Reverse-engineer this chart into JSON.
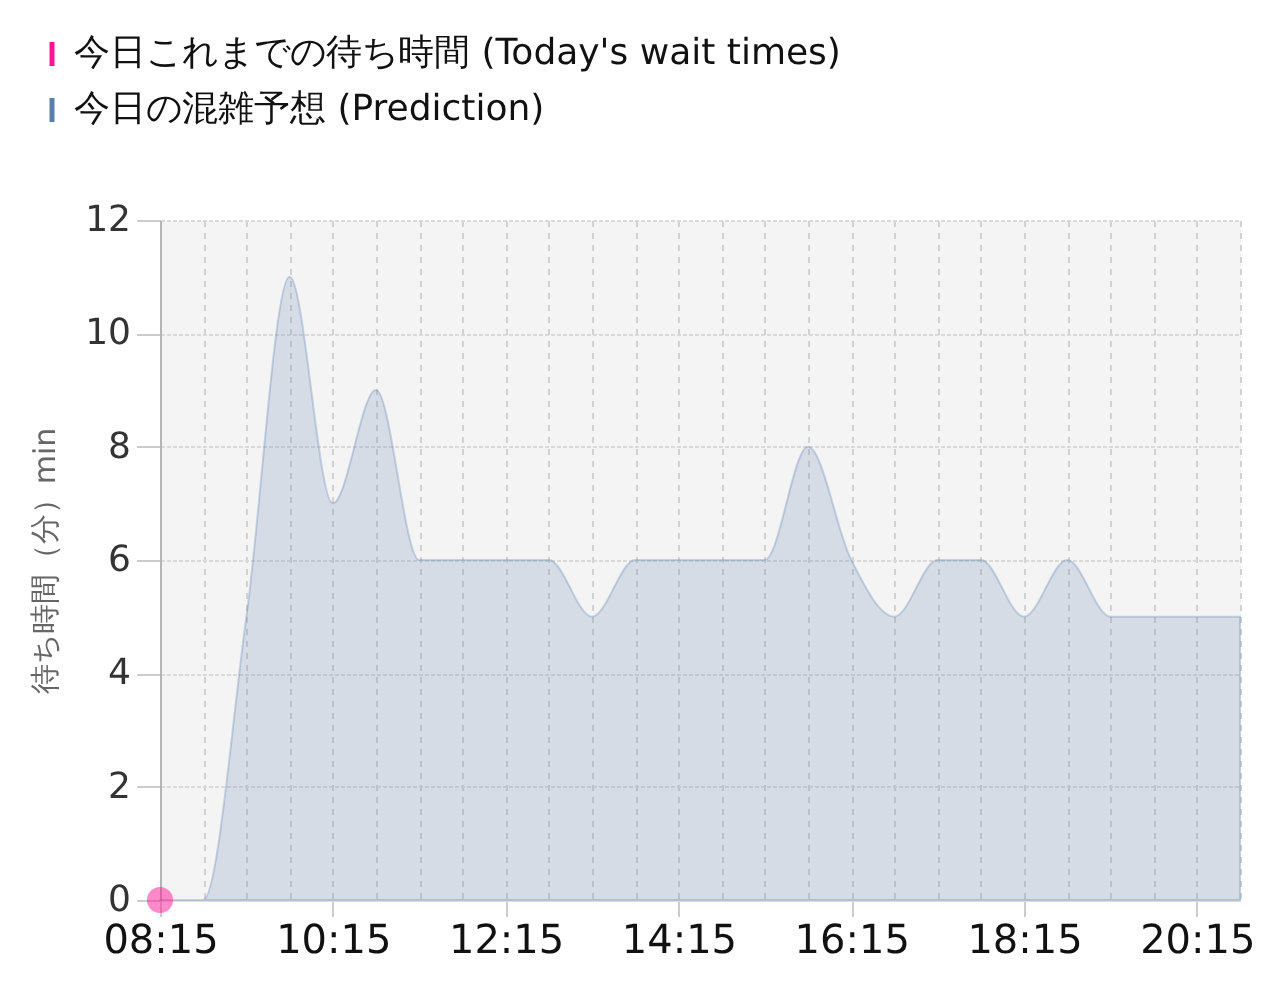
{
  "chart_data": {
    "type": "area",
    "ylabel": "待ち時間（分）min",
    "x": [
      8.25,
      8.75,
      9.25,
      9.75,
      10.25,
      10.75,
      11.25,
      11.75,
      12.25,
      12.75,
      13.25,
      13.75,
      14.25,
      14.75,
      15.25,
      15.75,
      16.25,
      16.75,
      17.25,
      17.75,
      18.25,
      18.75,
      19.25,
      19.75,
      20.25,
      20.75
    ],
    "xlim": [
      8.25,
      20.75
    ],
    "xticks": [
      {
        "value": 8.25,
        "label": "08:15"
      },
      {
        "value": 8.75,
        "label": null
      },
      {
        "value": 9.25,
        "label": null
      },
      {
        "value": 9.75,
        "label": null
      },
      {
        "value": 10.25,
        "label": "10:15"
      },
      {
        "value": 10.75,
        "label": null
      },
      {
        "value": 11.25,
        "label": null
      },
      {
        "value": 11.75,
        "label": null
      },
      {
        "value": 12.25,
        "label": "12:15"
      },
      {
        "value": 12.75,
        "label": null
      },
      {
        "value": 13.25,
        "label": null
      },
      {
        "value": 13.75,
        "label": null
      },
      {
        "value": 14.25,
        "label": "14:15"
      },
      {
        "value": 14.75,
        "label": null
      },
      {
        "value": 15.25,
        "label": null
      },
      {
        "value": 15.75,
        "label": null
      },
      {
        "value": 16.25,
        "label": "16:15"
      },
      {
        "value": 16.75,
        "label": null
      },
      {
        "value": 17.25,
        "label": null
      },
      {
        "value": 17.75,
        "label": null
      },
      {
        "value": 18.25,
        "label": "18:15"
      },
      {
        "value": 18.75,
        "label": null
      },
      {
        "value": 19.25,
        "label": null
      },
      {
        "value": 19.75,
        "label": null
      },
      {
        "value": 20.25,
        "label": "20:15"
      },
      {
        "value": 20.75,
        "label": null
      }
    ],
    "ylim": [
      0,
      12
    ],
    "yticks": [
      0,
      2,
      4,
      6,
      8,
      10,
      12
    ],
    "grid": true,
    "legend": "top left",
    "series": [
      {
        "name": "今日これまでの待ち時間 (Today's wait times)",
        "type": "scatter",
        "marker": "circle",
        "color": "#ff1493",
        "x": [
          8.25
        ],
        "values": [
          0
        ]
      },
      {
        "name": "今日の混雑予想 (Prediction)",
        "color": "#5a7fae",
        "values": [
          0,
          0,
          5,
          11,
          7,
          9,
          6,
          6,
          6,
          6,
          5,
          6,
          6,
          6,
          6,
          8,
          6,
          5,
          6,
          6,
          5,
          6,
          5,
          5,
          5,
          5
        ]
      }
    ]
  }
}
